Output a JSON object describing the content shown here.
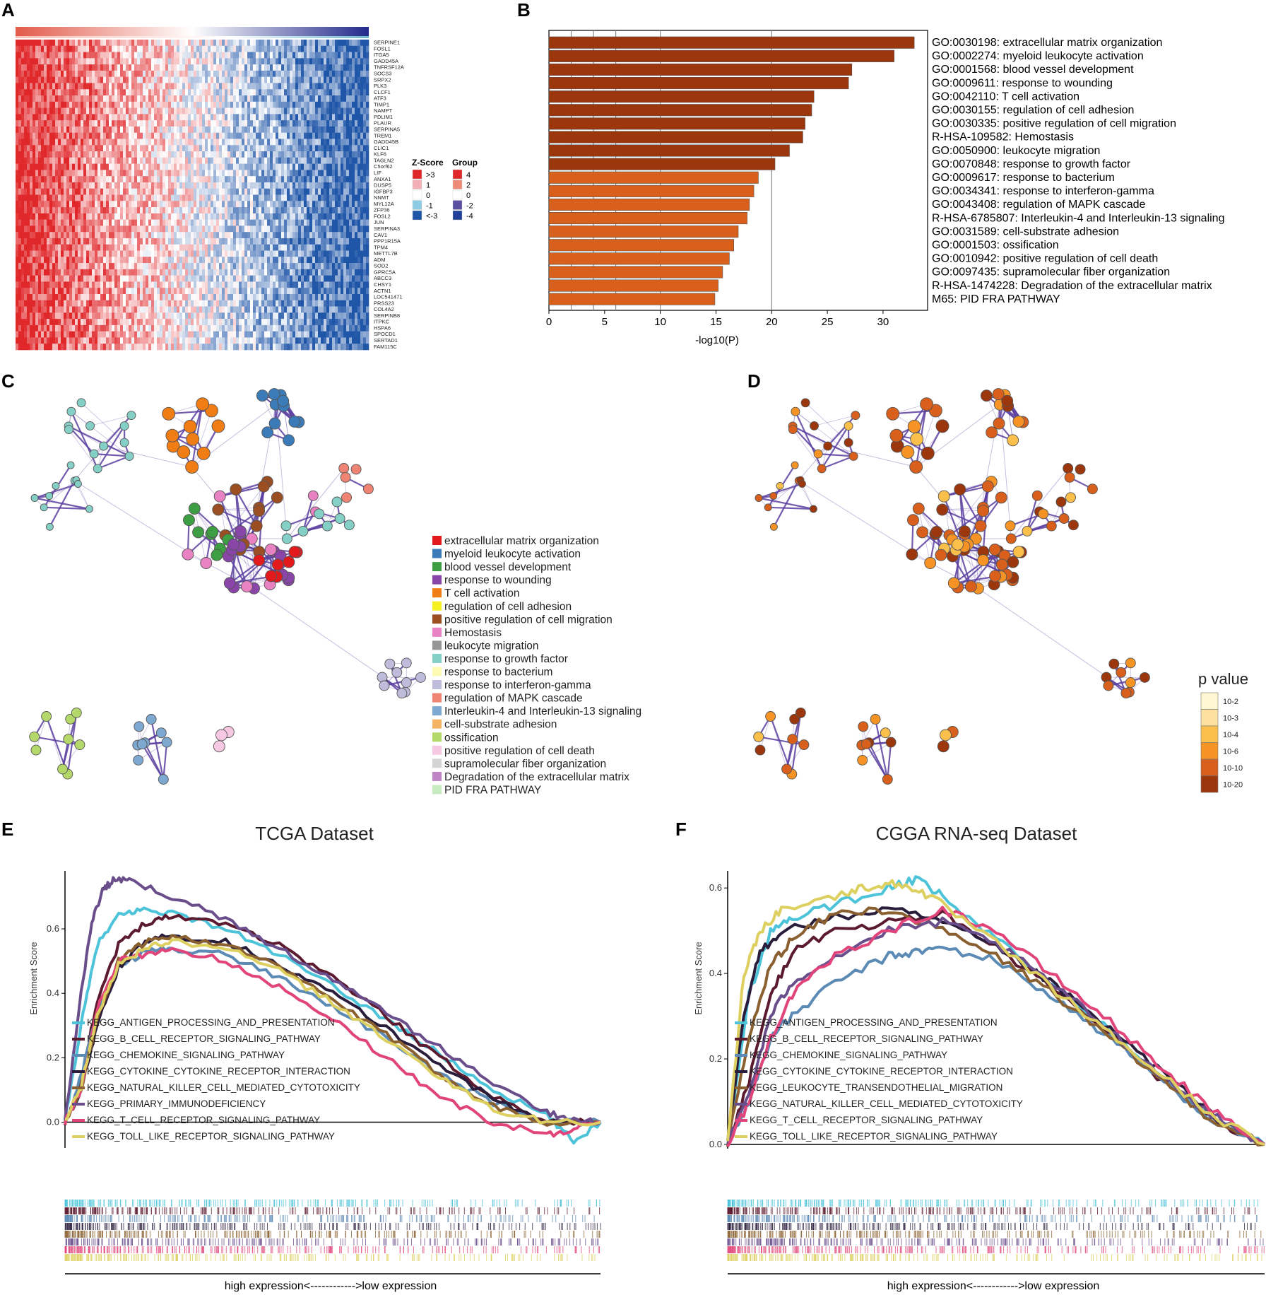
{
  "panels": [
    "A",
    "B",
    "C",
    "D",
    "E",
    "F"
  ],
  "heatmap": {
    "genes": [
      "SERPINE1",
      "FOSL1",
      "ITGA5",
      "GADD45A",
      "TNFRSF12A",
      "SOCS3",
      "SRPX2",
      "PLK3",
      "CLCF1",
      "ATF3",
      "TIMP1",
      "NAMPT",
      "PDLIM1",
      "PLAUR",
      "SERPINA5",
      "TREM1",
      "GADD45B",
      "CLIC1",
      "KLF6",
      "TAGLN2",
      "C5orf62",
      "LIF",
      "ANXA1",
      "DUSP5",
      "IGFBP3",
      "NNMT",
      "MYL12A",
      "ZFP36",
      "FOSL2",
      "JUN",
      "SERPINA3",
      "CAV1",
      "PPP1R15A",
      "TPM4",
      "METTL7B",
      "ADM",
      "SOD2",
      "GPRC5A",
      "ABCC3",
      "CHSY1",
      "ACTN1",
      "LOC541471",
      "PRSS23",
      "COL4A2",
      "SERPINB8",
      "ITPKC",
      "HSPA6",
      "SPOCD1",
      "SERTAD1",
      "FAM115C"
    ],
    "zscore_legend": {
      "title": "Z-Score",
      "labels": [
        ">3",
        "1",
        "0",
        "-1",
        "<-3"
      ],
      "colors": [
        "#e0282b",
        "#f2b0b4",
        "#ffffff",
        "#8ecbe5",
        "#2056a8"
      ]
    },
    "group_legend": {
      "title": "Group",
      "labels": [
        "4",
        "2",
        "0",
        "-2",
        "-4"
      ],
      "colors": [
        "#e0282b",
        "#ee8a78",
        "#ffffff",
        "#5a4fa0",
        "#20409a"
      ]
    }
  },
  "chart_data": [
    {
      "type": "bar",
      "orientation": "horizontal",
      "categories": [
        "GO:0030198: extracellular matrix organization",
        "GO:0002274: myeloid leukocyte activation",
        "GO:0001568: blood vessel development",
        "GO:0009611: response to wounding",
        "GO:0042110: T cell activation",
        "GO:0030155: regulation of cell adhesion",
        "GO:0030335: positive regulation of cell migration",
        "R-HSA-109582: Hemostasis",
        "GO:0050900: leukocyte migration",
        "GO:0070848: response to growth factor",
        "GO:0009617: response to bacterium",
        "GO:0034341: response to interferon-gamma",
        "GO:0043408: regulation of MAPK cascade",
        "R-HSA-6785807: Interleukin-4 and Interleukin-13 signaling",
        "GO:0031589: cell-substrate adhesion",
        "GO:0001503: ossification",
        "GO:0010942: positive regulation of cell death",
        "GO:0097435: supramolecular fiber organization",
        "R-HSA-1474228: Degradation of the extracellular matrix",
        "M65: PID FRA PATHWAY"
      ],
      "values": [
        32.8,
        31.0,
        27.2,
        26.9,
        23.8,
        23.6,
        23.0,
        22.8,
        21.6,
        20.3,
        18.8,
        18.4,
        18.0,
        17.8,
        17.0,
        16.6,
        16.2,
        15.6,
        15.2,
        14.9
      ],
      "bar_colors": [
        "#9c360c",
        "#9c360c",
        "#9c360c",
        "#9c360c",
        "#9c360c",
        "#9c360c",
        "#9c360c",
        "#9c360c",
        "#9c360c",
        "#9c360c",
        "#d8601c",
        "#d8601c",
        "#d8601c",
        "#d8601c",
        "#d8601c",
        "#d8601c",
        "#d8601c",
        "#d8601c",
        "#d8601c",
        "#d8601c"
      ],
      "xlabel": "-log10(P)",
      "xlim": [
        0,
        34
      ],
      "xticks": [
        0,
        5,
        10,
        15,
        20,
        25,
        30
      ],
      "gridlines": [
        2,
        4,
        6,
        10,
        20
      ]
    },
    {
      "type": "line",
      "title": "TCGA Dataset",
      "ylabel": "Enrichment Score",
      "yticks": [
        "0.0",
        "0.2",
        "0.4",
        "0.6"
      ],
      "ylim": [
        -0.08,
        0.78
      ],
      "xlabel": "high expression<------------>low expression",
      "series": [
        {
          "name": "KEGG_ANTIGEN_PROCESSING_AND_PRESENTATION",
          "color": "#4cc3d9",
          "x": [
            0,
            0.03,
            0.06,
            0.1,
            0.14,
            0.2,
            0.3,
            0.4,
            0.5,
            0.6,
            0.7,
            0.8,
            0.9,
            0.95,
            1.0
          ],
          "y": [
            0,
            0.3,
            0.55,
            0.64,
            0.66,
            0.65,
            0.6,
            0.52,
            0.42,
            0.32,
            0.21,
            0.1,
            0.02,
            -0.06,
            0.0
          ]
        },
        {
          "name": "KEGG_B_CELL_RECEPTOR_SIGNALING_PATHWAY",
          "color": "#5c1a2e",
          "x": [
            0,
            0.03,
            0.06,
            0.1,
            0.15,
            0.2,
            0.3,
            0.4,
            0.5,
            0.6,
            0.7,
            0.8,
            0.9,
            1.0
          ],
          "y": [
            0,
            0.12,
            0.38,
            0.55,
            0.62,
            0.64,
            0.62,
            0.55,
            0.45,
            0.33,
            0.2,
            0.08,
            0.0,
            0.0
          ]
        },
        {
          "name": "KEGG_CHEMOKINE_SIGNALING_PATHWAY",
          "color": "#5b8ab5",
          "x": [
            0,
            0.03,
            0.06,
            0.1,
            0.15,
            0.2,
            0.3,
            0.4,
            0.5,
            0.6,
            0.7,
            0.8,
            0.9,
            1.0
          ],
          "y": [
            0,
            0.14,
            0.34,
            0.48,
            0.53,
            0.54,
            0.52,
            0.45,
            0.36,
            0.26,
            0.15,
            0.06,
            0.0,
            0.0
          ]
        },
        {
          "name": "KEGG_CYTOKINE_CYTOKINE_RECEPTOR_INTERACTION",
          "color": "#2a1d3c",
          "x": [
            0,
            0.03,
            0.06,
            0.1,
            0.15,
            0.2,
            0.3,
            0.4,
            0.5,
            0.6,
            0.7,
            0.8,
            0.9,
            1.0
          ],
          "y": [
            0,
            0.1,
            0.3,
            0.48,
            0.56,
            0.58,
            0.56,
            0.49,
            0.4,
            0.29,
            0.18,
            0.07,
            0.0,
            0.0
          ]
        },
        {
          "name": "KEGG_NATURAL_KILLER_CELL_MEDIATED_CYTOTOXICITY",
          "color": "#8a6030",
          "x": [
            0,
            0.03,
            0.06,
            0.1,
            0.15,
            0.2,
            0.3,
            0.4,
            0.5,
            0.6,
            0.7,
            0.8,
            0.9,
            1.0
          ],
          "y": [
            0,
            0.1,
            0.32,
            0.5,
            0.56,
            0.58,
            0.55,
            0.48,
            0.38,
            0.27,
            0.15,
            0.05,
            0.0,
            0.0
          ]
        },
        {
          "name": "KEGG_PRIMARY_IMMUNODEFICIENCY",
          "color": "#6a4e8c",
          "x": [
            0,
            0.03,
            0.05,
            0.07,
            0.09,
            0.12,
            0.2,
            0.3,
            0.4,
            0.5,
            0.6,
            0.7,
            0.8,
            0.9,
            0.95,
            1.0
          ],
          "y": [
            0,
            0.4,
            0.62,
            0.72,
            0.75,
            0.75,
            0.7,
            0.63,
            0.54,
            0.44,
            0.34,
            0.23,
            0.12,
            0.03,
            0.01,
            0.0
          ]
        },
        {
          "name": "KEGG_T_CELL_RECEPTOR_SIGNALING_PATHWAY",
          "color": "#e0447a",
          "x": [
            0,
            0.03,
            0.06,
            0.1,
            0.15,
            0.2,
            0.3,
            0.4,
            0.5,
            0.6,
            0.7,
            0.8,
            0.9,
            0.95,
            1.0
          ],
          "y": [
            0,
            0.1,
            0.35,
            0.5,
            0.52,
            0.54,
            0.5,
            0.42,
            0.32,
            0.2,
            0.08,
            0.0,
            -0.04,
            -0.02,
            0.0
          ]
        },
        {
          "name": "KEGG_TOLL_LIKE_RECEPTOR_SIGNALING_PATHWAY",
          "color": "#ddd060",
          "x": [
            0,
            0.03,
            0.06,
            0.1,
            0.15,
            0.2,
            0.3,
            0.4,
            0.5,
            0.6,
            0.7,
            0.8,
            0.9,
            1.0
          ],
          "y": [
            0,
            0.11,
            0.33,
            0.49,
            0.54,
            0.56,
            0.54,
            0.47,
            0.37,
            0.26,
            0.14,
            0.04,
            0.0,
            0.0
          ]
        }
      ]
    },
    {
      "type": "line",
      "title": "CGGA RNA-seq Dataset",
      "ylabel": "Enrichment Score",
      "yticks": [
        "0.0",
        "0.2",
        "0.4",
        "0.6"
      ],
      "ylim": [
        -0.01,
        0.64
      ],
      "xlabel": "high expression<------------>low expression",
      "series": [
        {
          "name": "KEGG_ANTIGEN_PROCESSING_AND_PRESENTATION",
          "color": "#4cc3d9",
          "x": [
            0,
            0.04,
            0.08,
            0.12,
            0.2,
            0.3,
            0.35,
            0.4,
            0.5,
            0.6,
            0.7,
            0.8,
            0.9,
            1.0
          ],
          "y": [
            0,
            0.35,
            0.5,
            0.53,
            0.56,
            0.6,
            0.62,
            0.58,
            0.48,
            0.38,
            0.28,
            0.17,
            0.07,
            0.0
          ]
        },
        {
          "name": "KEGG_B_CELL_RECEPTOR_SIGNALING_PATHWAY",
          "color": "#5c1a2e",
          "x": [
            0,
            0.04,
            0.08,
            0.12,
            0.2,
            0.3,
            0.4,
            0.5,
            0.6,
            0.7,
            0.8,
            0.9,
            1.0
          ],
          "y": [
            0,
            0.15,
            0.35,
            0.45,
            0.5,
            0.52,
            0.54,
            0.46,
            0.37,
            0.27,
            0.16,
            0.06,
            0.0
          ]
        },
        {
          "name": "KEGG_CHEMOKINE_SIGNALING_PATHWAY",
          "color": "#5b8ab5",
          "x": [
            0,
            0.04,
            0.08,
            0.12,
            0.2,
            0.3,
            0.35,
            0.4,
            0.5,
            0.6,
            0.7,
            0.8,
            0.9,
            1.0
          ],
          "y": [
            0,
            0.1,
            0.25,
            0.3,
            0.38,
            0.44,
            0.45,
            0.46,
            0.43,
            0.35,
            0.26,
            0.16,
            0.06,
            0.0
          ]
        },
        {
          "name": "KEGG_CYTOKINE_CYTOKINE_RECEPTOR_INTERACTION",
          "color": "#2a1d3c",
          "x": [
            0,
            0.03,
            0.06,
            0.1,
            0.2,
            0.3,
            0.4,
            0.5,
            0.6,
            0.7,
            0.8,
            0.9,
            1.0
          ],
          "y": [
            0,
            0.3,
            0.45,
            0.5,
            0.53,
            0.55,
            0.52,
            0.46,
            0.38,
            0.28,
            0.18,
            0.07,
            0.0
          ]
        },
        {
          "name": "KEGG_LEUKOCYTE_TRANSENDOTHELIAL_MIGRATION",
          "color": "#8a6030",
          "x": [
            0,
            0.04,
            0.08,
            0.12,
            0.2,
            0.3,
            0.4,
            0.5,
            0.6,
            0.7,
            0.8,
            0.9,
            1.0
          ],
          "y": [
            0,
            0.25,
            0.42,
            0.48,
            0.54,
            0.55,
            0.5,
            0.44,
            0.36,
            0.26,
            0.16,
            0.06,
            0.0
          ]
        },
        {
          "name": "KEGG_NATURAL_KILLER_CELL_MEDIATED_CYTOTOXICITY",
          "color": "#6a4e8c",
          "x": [
            0,
            0.04,
            0.08,
            0.12,
            0.2,
            0.3,
            0.4,
            0.5,
            0.6,
            0.7,
            0.8,
            0.9,
            1.0
          ],
          "y": [
            0,
            0.12,
            0.3,
            0.38,
            0.44,
            0.5,
            0.52,
            0.47,
            0.38,
            0.28,
            0.17,
            0.07,
            0.0
          ]
        },
        {
          "name": "KEGG_T_CELL_RECEPTOR_SIGNALING_PATHWAY",
          "color": "#e0447a",
          "x": [
            0,
            0.04,
            0.08,
            0.12,
            0.2,
            0.3,
            0.4,
            0.5,
            0.6,
            0.7,
            0.8,
            0.9,
            1.0
          ],
          "y": [
            0,
            0.1,
            0.25,
            0.35,
            0.44,
            0.5,
            0.55,
            0.5,
            0.4,
            0.3,
            0.19,
            0.08,
            0.0
          ]
        },
        {
          "name": "KEGG_TOLL_LIKE_RECEPTOR_SIGNALING_PATHWAY",
          "color": "#ddd060",
          "x": [
            0,
            0.03,
            0.06,
            0.1,
            0.2,
            0.25,
            0.3,
            0.35,
            0.4,
            0.5,
            0.6,
            0.7,
            0.8,
            0.9,
            1.0
          ],
          "y": [
            0,
            0.4,
            0.5,
            0.55,
            0.58,
            0.6,
            0.61,
            0.6,
            0.56,
            0.47,
            0.37,
            0.27,
            0.17,
            0.07,
            0.0
          ]
        }
      ]
    }
  ],
  "network_legend": {
    "labels": [
      "extracellular matrix organization",
      "myeloid leukocyte activation",
      "blood vessel development",
      "response to wounding",
      "T cell activation",
      "regulation of cell adhesion",
      "positive regulation of cell migration",
      "Hemostasis",
      "leukocyte migration",
      "response to growth factor",
      "response to bacterium",
      "response to interferon-gamma",
      "regulation of MAPK cascade",
      "Interleukin-4 and Interleukin-13 signaling",
      "cell-substrate adhesion",
      "ossification",
      "positive regulation of cell death",
      "supramolecular fiber organization",
      "Degradation of the extracellular matrix",
      "PID FRA PATHWAY"
    ],
    "colors": [
      "#e31a1c",
      "#3a7bb8",
      "#3e9e44",
      "#8a45a8",
      "#f07c14",
      "#f4f021",
      "#9a4e22",
      "#e882c2",
      "#969696",
      "#84d0c7",
      "#fbfbb4",
      "#bfbcdb",
      "#f08474",
      "#7da8d0",
      "#f5b464",
      "#b5d86a",
      "#f7c8e2",
      "#d4d4d4",
      "#be84c4",
      "#c8eac0"
    ]
  },
  "pvalue_legend": {
    "title": "p value",
    "labels": [
      "10-2",
      "10-3",
      "10-4",
      "10-6",
      "10-10",
      "10-20"
    ],
    "colors": [
      "#fdf8d2",
      "#fbe0a0",
      "#fbbf4c",
      "#f59424",
      "#d8601c",
      "#9c360c"
    ]
  }
}
